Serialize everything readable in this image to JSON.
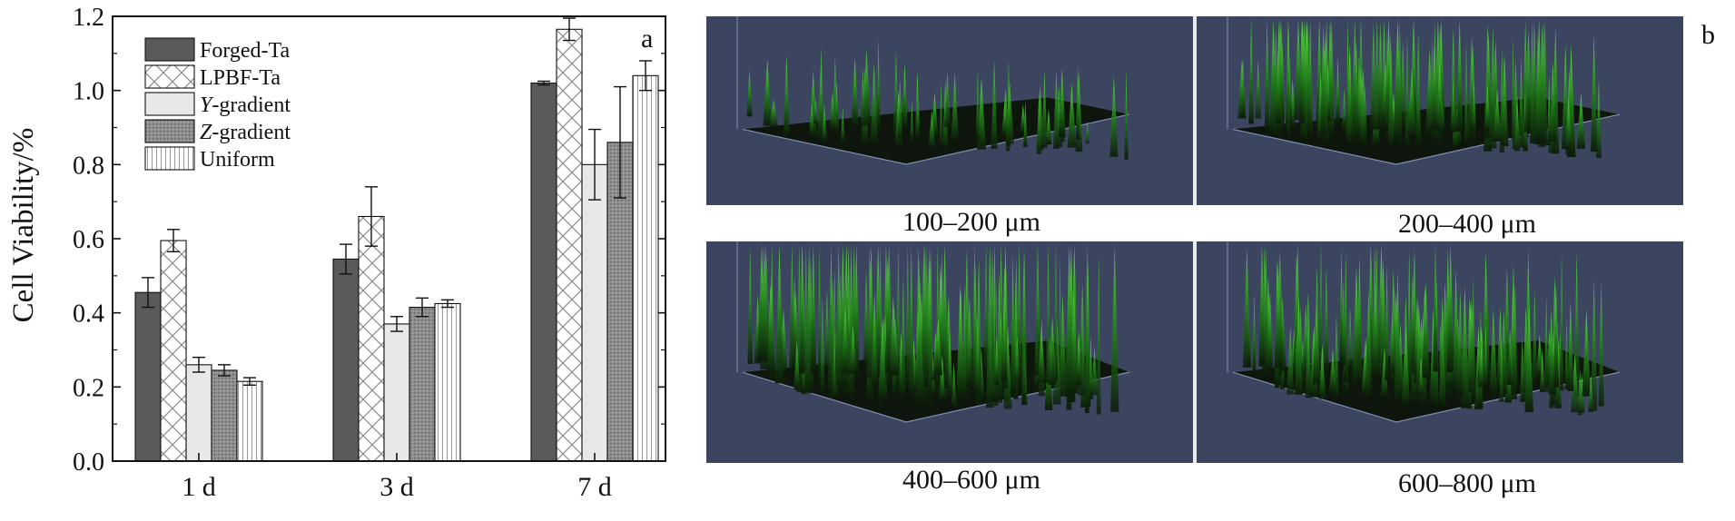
{
  "chart_data": {
    "type": "bar",
    "panel_label": "a",
    "ylabel": "Cell Viability/%",
    "xlabel": "",
    "ylim": [
      0,
      1.2
    ],
    "yticks": [
      "0.0",
      "0.2",
      "0.4",
      "0.6",
      "0.8",
      "1.0",
      "1.2"
    ],
    "categories": [
      "1 d",
      "3 d",
      "7 d"
    ],
    "legend_position": "top-left",
    "series": [
      {
        "name": "Forged-Ta",
        "legend_prefix": "",
        "legend_text": "Forged-Ta",
        "values": [
          0.455,
          0.545,
          1.02
        ],
        "errors": [
          0.04,
          0.04,
          0.005
        ],
        "fill": "#5a5a5a",
        "pattern": "solid"
      },
      {
        "name": "LPBF-Ta",
        "legend_prefix": "",
        "legend_text": "LPBF-Ta",
        "values": [
          0.595,
          0.66,
          1.165
        ],
        "errors": [
          0.03,
          0.08,
          0.03
        ],
        "fill": "#ffffff",
        "pattern": "crosshatch"
      },
      {
        "name": "Y-gradient",
        "legend_prefix": "Y",
        "legend_text": "-gradient",
        "values": [
          0.26,
          0.37,
          0.8
        ],
        "errors": [
          0.02,
          0.02,
          0.095
        ],
        "fill": "#e8e8e8",
        "pattern": "light"
      },
      {
        "name": "Z-gradient",
        "legend_prefix": "Z",
        "legend_text": "-gradient",
        "values": [
          0.245,
          0.415,
          0.86
        ],
        "errors": [
          0.015,
          0.025,
          0.15
        ],
        "fill": "#8a8a8a",
        "pattern": "dotted"
      },
      {
        "name": "Uniform",
        "legend_prefix": "",
        "legend_text": "Uniform",
        "values": [
          0.215,
          0.425,
          1.04
        ],
        "errors": [
          0.01,
          0.01,
          0.04
        ],
        "fill": "#ffffff",
        "pattern": "vertical"
      }
    ]
  },
  "images": {
    "panel_label": "b",
    "captions": [
      "100–200 μm",
      "200–400 μm",
      "400–600 μm",
      "600–800 μm"
    ],
    "colors": {
      "background": "#3b4560",
      "cells": "#3fbf34",
      "divider": "#e8eaee"
    }
  }
}
